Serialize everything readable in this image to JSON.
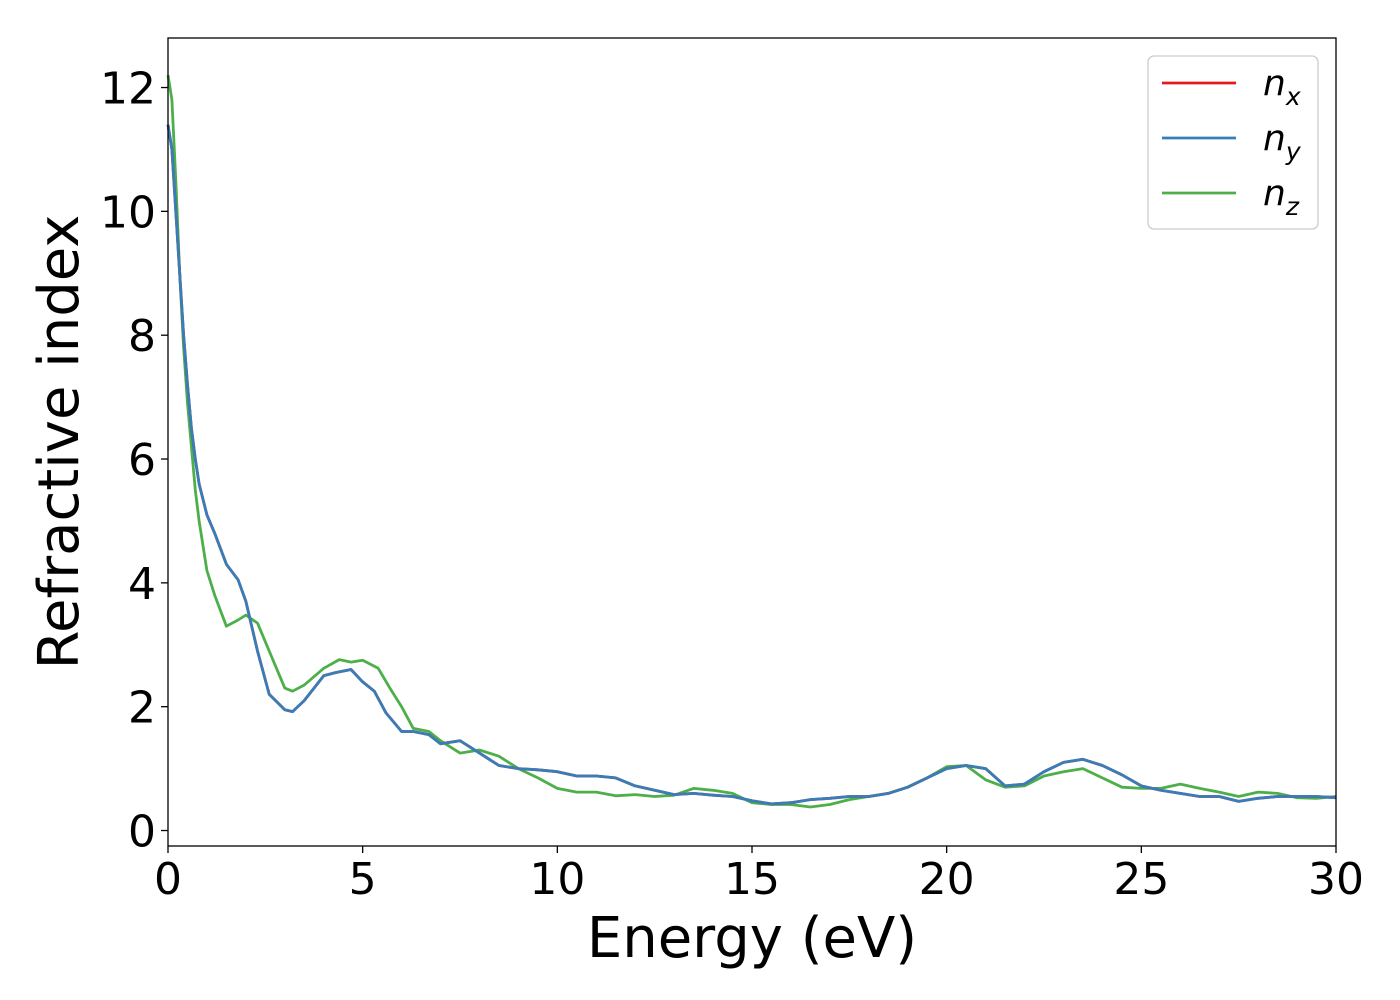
{
  "chart_data": {
    "type": "line",
    "title": "",
    "xlabel": "Energy (eV)",
    "ylabel": "Refractive index",
    "xlim": [
      0,
      30
    ],
    "ylim": [
      -0.25,
      12.8
    ],
    "xticks": [
      0,
      5,
      10,
      15,
      20,
      25,
      30
    ],
    "yticks": [
      0,
      2,
      4,
      6,
      8,
      10,
      12
    ],
    "grid": false,
    "legend_position": "top-right",
    "series": [
      {
        "name": "n",
        "subscript": "x",
        "color": "#e41a1c",
        "x": [
          0.0,
          0.1,
          0.2,
          0.3,
          0.4,
          0.5,
          0.6,
          0.7,
          0.8,
          1.0,
          1.2,
          1.5,
          1.8,
          2.0,
          2.3,
          2.6,
          3.0,
          3.2,
          3.5,
          4.0,
          4.3,
          4.7,
          5.0,
          5.3,
          5.6,
          6.0,
          6.3,
          6.7,
          7.0,
          7.5,
          8.0,
          8.5,
          9.0,
          9.5,
          10.0,
          10.5,
          11.0,
          11.5,
          12.0,
          12.5,
          13.0,
          13.5,
          14.0,
          14.5,
          15.0,
          15.5,
          16.0,
          16.5,
          17.0,
          17.5,
          18.0,
          18.5,
          19.0,
          19.5,
          20.0,
          20.5,
          21.0,
          21.5,
          22.0,
          22.5,
          23.0,
          23.5,
          24.0,
          24.5,
          25.0,
          25.5,
          26.0,
          26.5,
          27.0,
          27.5,
          28.0,
          28.5,
          29.0,
          29.5,
          30.0
        ],
        "y": [
          11.4,
          11.0,
          10.0,
          9.0,
          8.0,
          7.2,
          6.5,
          6.0,
          5.6,
          5.1,
          4.8,
          4.3,
          4.05,
          3.7,
          2.9,
          2.2,
          1.95,
          1.92,
          2.1,
          2.5,
          2.55,
          2.6,
          2.4,
          2.25,
          1.9,
          1.6,
          1.6,
          1.55,
          1.4,
          1.45,
          1.25,
          1.05,
          1.0,
          0.98,
          0.95,
          0.88,
          0.88,
          0.85,
          0.72,
          0.65,
          0.58,
          0.6,
          0.57,
          0.55,
          0.48,
          0.43,
          0.45,
          0.5,
          0.52,
          0.55,
          0.55,
          0.6,
          0.7,
          0.85,
          1.0,
          1.05,
          1.0,
          0.72,
          0.75,
          0.95,
          1.1,
          1.15,
          1.05,
          0.9,
          0.72,
          0.65,
          0.6,
          0.55,
          0.55,
          0.47,
          0.52,
          0.55,
          0.55,
          0.55,
          0.53
        ]
      },
      {
        "name": "n",
        "subscript": "y",
        "color": "#377eb8",
        "x": [
          0.0,
          0.1,
          0.2,
          0.3,
          0.4,
          0.5,
          0.6,
          0.7,
          0.8,
          1.0,
          1.2,
          1.5,
          1.8,
          2.0,
          2.3,
          2.6,
          3.0,
          3.2,
          3.5,
          4.0,
          4.3,
          4.7,
          5.0,
          5.3,
          5.6,
          6.0,
          6.3,
          6.7,
          7.0,
          7.5,
          8.0,
          8.5,
          9.0,
          9.5,
          10.0,
          10.5,
          11.0,
          11.5,
          12.0,
          12.5,
          13.0,
          13.5,
          14.0,
          14.5,
          15.0,
          15.5,
          16.0,
          16.5,
          17.0,
          17.5,
          18.0,
          18.5,
          19.0,
          19.5,
          20.0,
          20.5,
          21.0,
          21.5,
          22.0,
          22.5,
          23.0,
          23.5,
          24.0,
          24.5,
          25.0,
          25.5,
          26.0,
          26.5,
          27.0,
          27.5,
          28.0,
          28.5,
          29.0,
          29.5,
          30.0
        ],
        "y": [
          11.4,
          11.0,
          10.0,
          9.0,
          8.0,
          7.2,
          6.5,
          6.0,
          5.6,
          5.1,
          4.8,
          4.3,
          4.05,
          3.7,
          2.9,
          2.2,
          1.95,
          1.92,
          2.1,
          2.5,
          2.55,
          2.6,
          2.4,
          2.25,
          1.9,
          1.6,
          1.6,
          1.55,
          1.4,
          1.45,
          1.25,
          1.05,
          1.0,
          0.98,
          0.95,
          0.88,
          0.88,
          0.85,
          0.72,
          0.65,
          0.58,
          0.6,
          0.57,
          0.55,
          0.48,
          0.43,
          0.45,
          0.5,
          0.52,
          0.55,
          0.55,
          0.6,
          0.7,
          0.85,
          1.0,
          1.05,
          1.0,
          0.72,
          0.75,
          0.95,
          1.1,
          1.15,
          1.05,
          0.9,
          0.72,
          0.65,
          0.6,
          0.55,
          0.55,
          0.47,
          0.52,
          0.55,
          0.55,
          0.55,
          0.53
        ]
      },
      {
        "name": "n",
        "subscript": "z",
        "color": "#4daf4a",
        "x": [
          0.0,
          0.1,
          0.2,
          0.3,
          0.4,
          0.5,
          0.6,
          0.7,
          0.8,
          1.0,
          1.2,
          1.5,
          1.8,
          2.0,
          2.3,
          2.6,
          3.0,
          3.2,
          3.5,
          4.0,
          4.4,
          4.7,
          5.0,
          5.4,
          5.7,
          6.0,
          6.3,
          6.7,
          7.0,
          7.5,
          8.0,
          8.5,
          9.0,
          9.5,
          10.0,
          10.5,
          11.0,
          11.5,
          12.0,
          12.5,
          13.0,
          13.5,
          14.0,
          14.5,
          15.0,
          15.5,
          16.0,
          16.5,
          17.0,
          17.5,
          18.0,
          18.5,
          19.0,
          19.5,
          20.0,
          20.5,
          21.0,
          21.5,
          22.0,
          22.5,
          23.0,
          23.5,
          24.0,
          24.5,
          25.0,
          25.5,
          26.0,
          26.5,
          27.0,
          27.5,
          28.0,
          28.5,
          29.0,
          29.5,
          30.0
        ],
        "y": [
          12.2,
          11.8,
          10.5,
          9.0,
          7.8,
          6.9,
          6.2,
          5.5,
          5.0,
          4.2,
          3.8,
          3.3,
          3.4,
          3.48,
          3.35,
          2.9,
          2.3,
          2.25,
          2.35,
          2.62,
          2.76,
          2.72,
          2.75,
          2.62,
          2.3,
          2.0,
          1.65,
          1.6,
          1.45,
          1.25,
          1.3,
          1.2,
          1.0,
          0.85,
          0.68,
          0.62,
          0.62,
          0.56,
          0.58,
          0.55,
          0.57,
          0.68,
          0.65,
          0.6,
          0.45,
          0.42,
          0.42,
          0.38,
          0.42,
          0.5,
          0.55,
          0.6,
          0.7,
          0.85,
          1.03,
          1.05,
          0.82,
          0.7,
          0.72,
          0.88,
          0.95,
          1.0,
          0.85,
          0.7,
          0.68,
          0.68,
          0.75,
          0.68,
          0.62,
          0.55,
          0.62,
          0.6,
          0.53,
          0.52,
          0.55
        ]
      }
    ]
  }
}
